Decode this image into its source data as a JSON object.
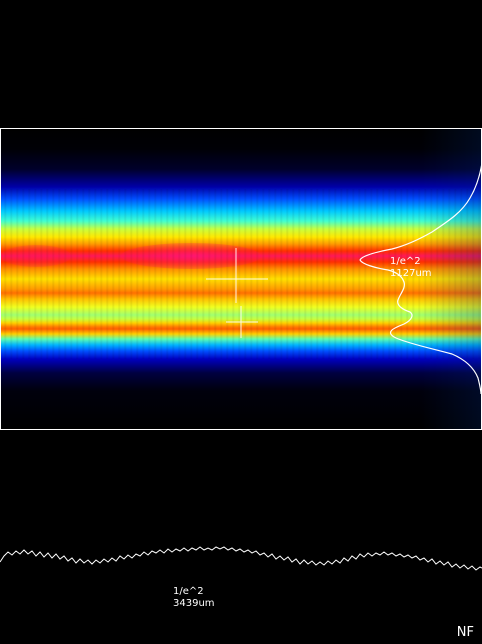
{
  "vertical_profile": {
    "level_label": "1/e^2",
    "width_label": "1127um"
  },
  "horizontal_profile": {
    "level_label": "1/e^2",
    "width_label": "3439um"
  },
  "mode": {
    "label": "NF"
  },
  "colors": {
    "background": "#000000",
    "frame": "#ffffff",
    "overlay_lines": "#ffffff"
  },
  "icons": {
    "centroid_marker": "crosshair-icon",
    "peak_marker": "crosshair-icon"
  }
}
